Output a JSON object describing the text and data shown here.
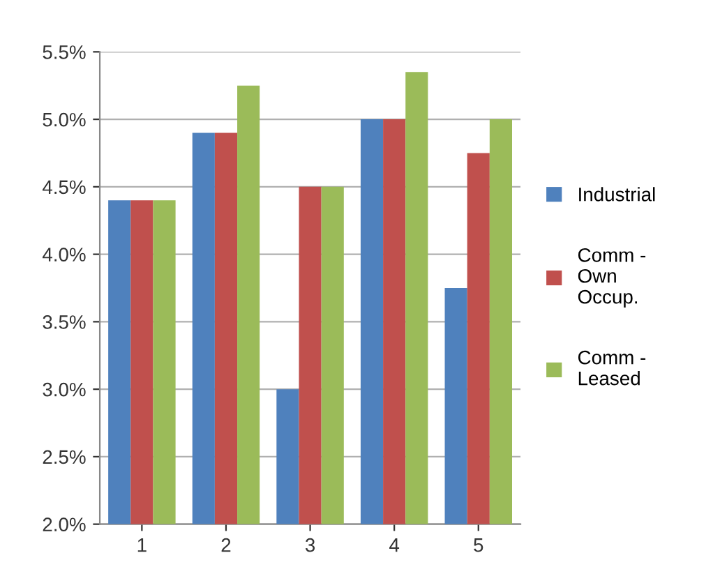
{
  "chart_data": {
    "type": "bar",
    "categories": [
      "1",
      "2",
      "3",
      "4",
      "5"
    ],
    "series": [
      {
        "name": "Industrial",
        "color": "#4f81bd",
        "values": [
          4.4,
          4.9,
          3.0,
          5.0,
          3.75
        ]
      },
      {
        "name": "Comm -\nOwn\nOccup.",
        "color": "#c0504d",
        "values": [
          4.4,
          4.9,
          4.5,
          5.0,
          4.75
        ]
      },
      {
        "name": "Comm -\nLeased",
        "color": "#9bbb59",
        "values": [
          4.4,
          5.25,
          4.5,
          5.35,
          5.0
        ]
      }
    ],
    "ylim": [
      2.0,
      5.5
    ],
    "yticks": [
      {
        "value": 2.0,
        "label": "2.0%"
      },
      {
        "value": 2.5,
        "label": "2.5%"
      },
      {
        "value": 3.0,
        "label": "3.0%"
      },
      {
        "value": 3.5,
        "label": "3.5%"
      },
      {
        "value": 4.0,
        "label": "4.0%"
      },
      {
        "value": 4.5,
        "label": "4.5%"
      },
      {
        "value": 5.0,
        "label": "5.0%"
      },
      {
        "value": 5.5,
        "label": "5.5%"
      }
    ],
    "grid": "y",
    "legend": "right"
  }
}
